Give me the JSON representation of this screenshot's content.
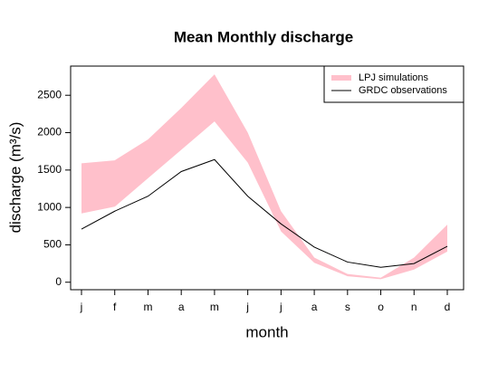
{
  "chart_data": {
    "type": "line",
    "title": "Mean Monthly discharge",
    "x_label": "month",
    "y_label": "discharge (m³/s)",
    "categories": [
      "j",
      "f",
      "m",
      "a",
      "m",
      "j",
      "j",
      "a",
      "s",
      "o",
      "n",
      "d"
    ],
    "series": [
      {
        "name": "LPJ simulations",
        "color": "#ffc0cb",
        "upper": [
          1590,
          1630,
          1910,
          2330,
          2780,
          2000,
          950,
          330,
          110,
          60,
          330,
          770
        ],
        "lower": [
          920,
          1010,
          1390,
          1770,
          2150,
          1600,
          680,
          260,
          80,
          40,
          170,
          410
        ]
      },
      {
        "name": "GRDC observations",
        "color": "#000000",
        "values": [
          710,
          950,
          1150,
          1480,
          1640,
          1150,
          780,
          470,
          270,
          200,
          250,
          480
        ]
      }
    ],
    "ylim": [
      -100,
      2890
    ],
    "yticks": [
      0,
      500,
      1000,
      1500,
      2000,
      2500
    ],
    "grid": false,
    "legend": "topright"
  }
}
